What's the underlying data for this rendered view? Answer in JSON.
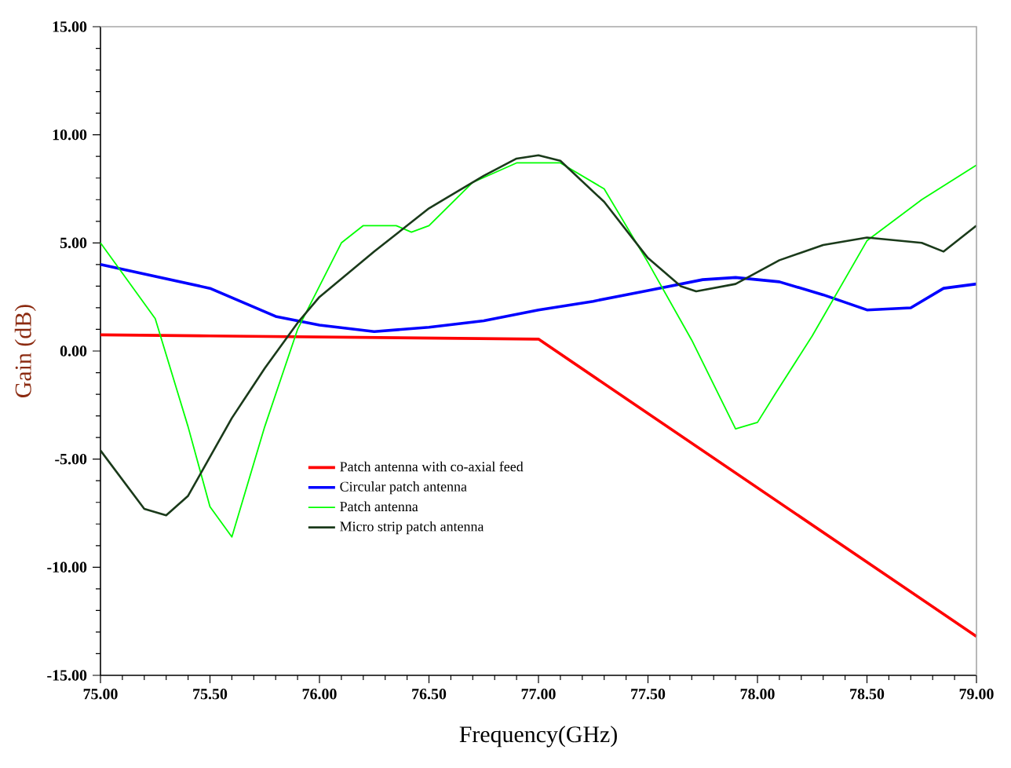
{
  "chart_data": {
    "type": "line",
    "xlabel": "Frequency(GHz)",
    "ylabel": "Gain (dB)",
    "xlim": [
      75,
      79
    ],
    "ylim": [
      -15,
      15
    ],
    "xticks": [
      {
        "value": 75,
        "label": "75.00"
      },
      {
        "value": 75.5,
        "label": "75.50"
      },
      {
        "value": 76,
        "label": "76.00"
      },
      {
        "value": 76.5,
        "label": "76.50"
      },
      {
        "value": 77,
        "label": "77.00"
      },
      {
        "value": 77.5,
        "label": "77.50"
      },
      {
        "value": 78,
        "label": "78.00"
      },
      {
        "value": 78.5,
        "label": "78.50"
      },
      {
        "value": 79,
        "label": "79.00"
      }
    ],
    "yticks": [
      {
        "value": -15,
        "label": "-15.00"
      },
      {
        "value": -10,
        "label": "-10.00"
      },
      {
        "value": -5,
        "label": "-5.00"
      },
      {
        "value": 0,
        "label": "0.00"
      },
      {
        "value": 5,
        "label": "5.00"
      },
      {
        "value": 10,
        "label": "10.00"
      },
      {
        "value": 15,
        "label": "15.00"
      }
    ],
    "grid": false,
    "legend": "bottom",
    "line_style": "solid",
    "marker": "none",
    "series": [
      {
        "name": "Patch antenna with co-axial feed",
        "color": "#ff0000",
        "x": [
          75,
          75.5,
          76,
          76.5,
          77,
          79
        ],
        "values": [
          0.75,
          0.7,
          0.65,
          0.6,
          0.55,
          -13.2
        ]
      },
      {
        "name": "Circular patch antenna",
        "color": "#0000ff",
        "x": [
          75,
          75.5,
          75.8,
          76,
          76.25,
          76.5,
          76.75,
          77,
          77.25,
          77.5,
          77.75,
          77.9,
          78.1,
          78.3,
          78.5,
          78.7,
          78.85,
          79
        ],
        "values": [
          4.0,
          2.9,
          1.6,
          1.2,
          0.9,
          1.1,
          1.4,
          1.9,
          2.3,
          2.8,
          3.3,
          3.4,
          3.2,
          2.6,
          1.9,
          2.0,
          2.9,
          3.1
        ]
      },
      {
        "name": "Patch antenna",
        "color": "#00ff00",
        "x": [
          75,
          75.25,
          75.4,
          75.5,
          75.6,
          75.75,
          75.9,
          76.1,
          76.2,
          76.35,
          76.42,
          76.5,
          76.7,
          76.9,
          77.1,
          77.3,
          77.5,
          77.7,
          77.9,
          78,
          78.08,
          78.25,
          78.5,
          78.75,
          79
        ],
        "values": [
          5.0,
          1.5,
          -3.5,
          -7.2,
          -8.6,
          -3.5,
          1.0,
          5.0,
          5.8,
          5.8,
          5.5,
          5.8,
          7.8,
          8.7,
          8.7,
          7.5,
          4.1,
          0.5,
          -3.6,
          -3.3,
          -2.0,
          0.7,
          5.1,
          7.0,
          8.6
        ]
      },
      {
        "name": "Micro strip patch antenna",
        "color": "#1a3a1a",
        "x": [
          75,
          75.2,
          75.3,
          75.4,
          75.5,
          75.6,
          75.75,
          75.9,
          76,
          76.25,
          76.5,
          76.75,
          76.9,
          77,
          77.1,
          77.3,
          77.5,
          77.65,
          77.72,
          77.9,
          78.1,
          78.3,
          78.5,
          78.75,
          78.85,
          79
        ],
        "values": [
          -4.6,
          -7.3,
          -7.6,
          -6.7,
          -4.9,
          -3.1,
          -0.8,
          1.3,
          2.5,
          4.6,
          6.6,
          8.1,
          8.9,
          9.05,
          8.8,
          6.9,
          4.3,
          3.0,
          2.76,
          3.1,
          4.2,
          4.9,
          5.25,
          5.0,
          4.6,
          5.8
        ]
      }
    ]
  }
}
